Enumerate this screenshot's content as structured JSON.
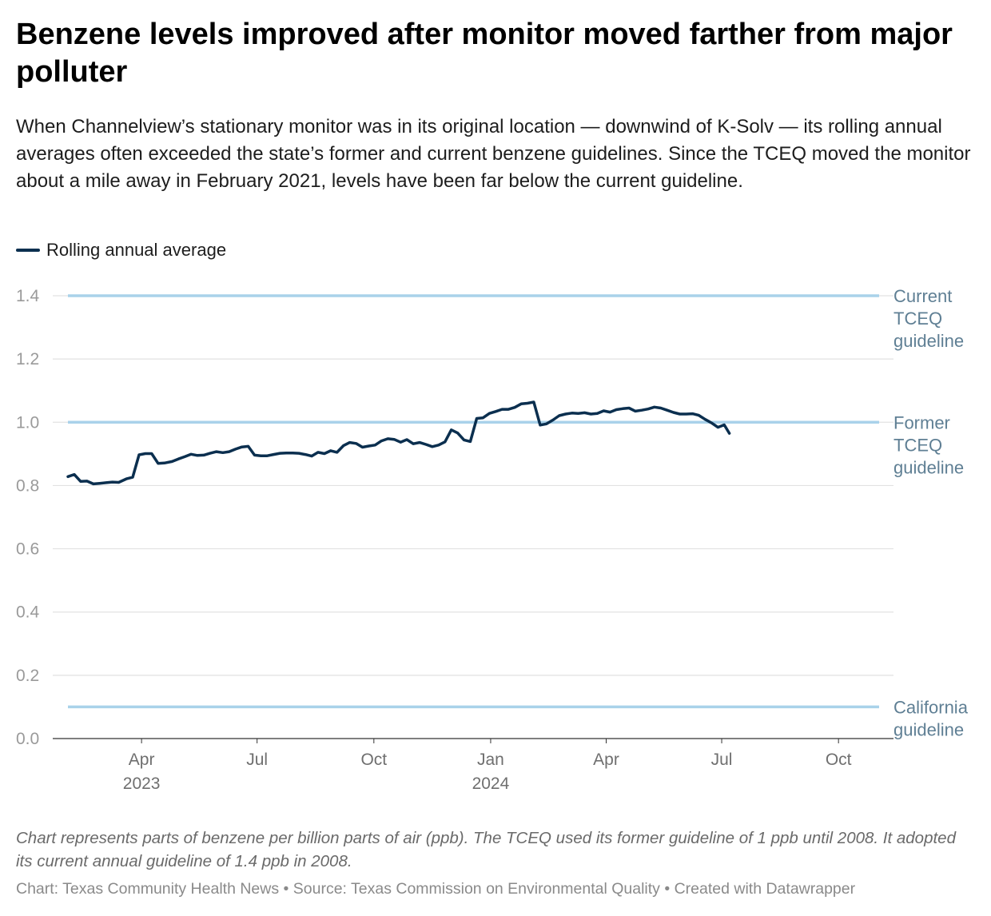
{
  "title": "Benzene levels improved after monitor moved farther from major polluter",
  "subtitle": "When Channelview’s stationary monitor was in its original location — downwind of K-Solv — its rolling annual averages often exceeded the state’s former and current benzene guidelines. Since the TCEQ moved the monitor about a mile away in February 2021, levels have been far below the current guideline.",
  "notes": "Chart represents parts of benzene per billion parts of air (ppb). The TCEQ used its former guideline of 1 ppb until 2008. It adopted its current annual guideline of 1.4 ppb in 2008.",
  "byline": "Chart: Texas Community Health News • Source: Texas Commission on Environmental Quality • Created with Datawrapper",
  "colors": {
    "line": "#0b2f4f",
    "reference": "#a9d2ea",
    "grid": "#e2e2e2",
    "reference_label": "#5f7f94"
  },
  "chart_data": {
    "type": "line",
    "legend": "Rolling annual average",
    "legend_position": "top-left",
    "grid": true,
    "ylim": [
      0,
      1.4
    ],
    "yticks": [
      "0.0",
      "0.2",
      "0.4",
      "0.6",
      "0.8",
      "1.0",
      "1.2",
      "1.4"
    ],
    "xlim": [
      "2023-02-02",
      "2024-11-02"
    ],
    "xticks": [
      {
        "date": "2023-04-01",
        "label": "Apr",
        "year": "2023"
      },
      {
        "date": "2023-07-01",
        "label": "Jul",
        "year": ""
      },
      {
        "date": "2023-10-01",
        "label": "Oct",
        "year": ""
      },
      {
        "date": "2024-01-01",
        "label": "Jan",
        "year": "2024"
      },
      {
        "date": "2024-04-01",
        "label": "Apr",
        "year": ""
      },
      {
        "date": "2024-07-01",
        "label": "Jul",
        "year": ""
      },
      {
        "date": "2024-10-01",
        "label": "Oct",
        "year": ""
      }
    ],
    "reference_lines": [
      {
        "value": 1.4,
        "label": [
          "Current",
          "TCEQ",
          "guideline"
        ]
      },
      {
        "value": 1.0,
        "label": [
          "Former",
          "TCEQ",
          "guideline"
        ]
      },
      {
        "value": 0.1,
        "label": [
          "California",
          "guideline"
        ]
      }
    ],
    "series": [
      {
        "name": "Rolling annual average",
        "points": [
          [
            "2023-02-02",
            0.828
          ],
          [
            "2023-02-07",
            0.835
          ],
          [
            "2023-02-12",
            0.813
          ],
          [
            "2023-02-17",
            0.814
          ],
          [
            "2023-02-22",
            0.805
          ],
          [
            "2023-02-27",
            0.807
          ],
          [
            "2023-03-04",
            0.809
          ],
          [
            "2023-03-09",
            0.811
          ],
          [
            "2023-03-14",
            0.81
          ],
          [
            "2023-03-20",
            0.821
          ],
          [
            "2023-03-25",
            0.826
          ],
          [
            "2023-03-30",
            0.897
          ],
          [
            "2023-04-04",
            0.901
          ],
          [
            "2023-04-09",
            0.901
          ],
          [
            "2023-04-14",
            0.87
          ],
          [
            "2023-04-19",
            0.871
          ],
          [
            "2023-04-25",
            0.876
          ],
          [
            "2023-04-30",
            0.884
          ],
          [
            "2023-05-05",
            0.891
          ],
          [
            "2023-05-10",
            0.899
          ],
          [
            "2023-05-15",
            0.895
          ],
          [
            "2023-05-20",
            0.896
          ],
          [
            "2023-05-25",
            0.902
          ],
          [
            "2023-05-30",
            0.907
          ],
          [
            "2023-06-04",
            0.904
          ],
          [
            "2023-06-09",
            0.907
          ],
          [
            "2023-06-14",
            0.915
          ],
          [
            "2023-06-19",
            0.922
          ],
          [
            "2023-06-24",
            0.924
          ],
          [
            "2023-06-29",
            0.896
          ],
          [
            "2023-07-04",
            0.894
          ],
          [
            "2023-07-09",
            0.894
          ],
          [
            "2023-07-14",
            0.898
          ],
          [
            "2023-07-19",
            0.902
          ],
          [
            "2023-07-24",
            0.903
          ],
          [
            "2023-07-29",
            0.903
          ],
          [
            "2023-08-03",
            0.902
          ],
          [
            "2023-08-08",
            0.898
          ],
          [
            "2023-08-13",
            0.893
          ],
          [
            "2023-08-18",
            0.905
          ],
          [
            "2023-08-23",
            0.901
          ],
          [
            "2023-08-28",
            0.91
          ],
          [
            "2023-09-02",
            0.905
          ],
          [
            "2023-09-07",
            0.926
          ],
          [
            "2023-09-12",
            0.936
          ],
          [
            "2023-09-17",
            0.933
          ],
          [
            "2023-09-22",
            0.921
          ],
          [
            "2023-09-27",
            0.925
          ],
          [
            "2023-10-02",
            0.928
          ],
          [
            "2023-10-07",
            0.941
          ],
          [
            "2023-10-12",
            0.948
          ],
          [
            "2023-10-17",
            0.946
          ],
          [
            "2023-10-22",
            0.937
          ],
          [
            "2023-10-27",
            0.945
          ],
          [
            "2023-11-01",
            0.932
          ],
          [
            "2023-11-06",
            0.936
          ],
          [
            "2023-11-11",
            0.93
          ],
          [
            "2023-11-16",
            0.923
          ],
          [
            "2023-11-21",
            0.928
          ],
          [
            "2023-11-26",
            0.938
          ],
          [
            "2023-12-01",
            0.976
          ],
          [
            "2023-12-06",
            0.966
          ],
          [
            "2023-12-11",
            0.944
          ],
          [
            "2023-12-16",
            0.939
          ],
          [
            "2023-12-21",
            1.012
          ],
          [
            "2023-12-26",
            1.014
          ],
          [
            "2023-12-31",
            1.028
          ],
          [
            "2024-01-05",
            1.034
          ],
          [
            "2024-01-10",
            1.041
          ],
          [
            "2024-01-15",
            1.041
          ],
          [
            "2024-01-20",
            1.047
          ],
          [
            "2024-01-25",
            1.058
          ],
          [
            "2024-01-30",
            1.06
          ],
          [
            "2024-02-04",
            1.064
          ],
          [
            "2024-02-09",
            0.991
          ],
          [
            "2024-02-14",
            0.995
          ],
          [
            "2024-02-19",
            1.007
          ],
          [
            "2024-02-24",
            1.021
          ],
          [
            "2024-02-29",
            1.026
          ],
          [
            "2024-03-05",
            1.029
          ],
          [
            "2024-03-10",
            1.028
          ],
          [
            "2024-03-15",
            1.03
          ],
          [
            "2024-03-20",
            1.026
          ],
          [
            "2024-03-25",
            1.028
          ],
          [
            "2024-03-30",
            1.036
          ],
          [
            "2024-04-04",
            1.032
          ],
          [
            "2024-04-09",
            1.04
          ],
          [
            "2024-04-14",
            1.043
          ],
          [
            "2024-04-19",
            1.045
          ],
          [
            "2024-04-24",
            1.035
          ],
          [
            "2024-04-29",
            1.038
          ],
          [
            "2024-05-04",
            1.042
          ],
          [
            "2024-05-09",
            1.048
          ],
          [
            "2024-05-14",
            1.045
          ],
          [
            "2024-05-19",
            1.038
          ],
          [
            "2024-05-24",
            1.031
          ],
          [
            "2024-05-29",
            1.026
          ],
          [
            "2024-06-03",
            1.026
          ],
          [
            "2024-06-08",
            1.027
          ],
          [
            "2024-06-13",
            1.022
          ],
          [
            "2024-06-18",
            1.009
          ],
          [
            "2024-06-23",
            0.998
          ],
          [
            "2024-06-28",
            0.984
          ],
          [
            "2024-07-03",
            0.992
          ],
          [
            "2024-07-07",
            0.965
          ]
        ]
      }
    ]
  }
}
